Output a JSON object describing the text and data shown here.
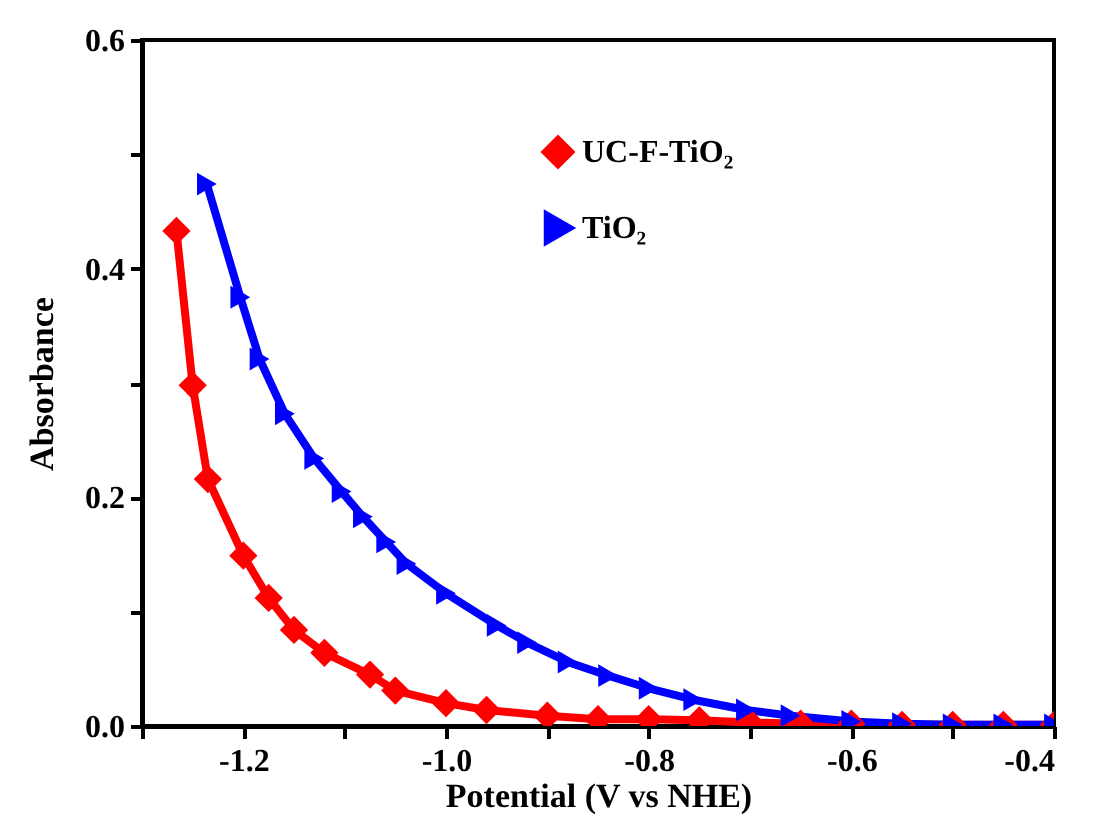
{
  "chart_data": {
    "type": "line",
    "xlabel": "Potential (V vs NHE)",
    "ylabel": "Absorbance",
    "xlim": [
      -1.3,
      -0.4
    ],
    "ylim": [
      0,
      0.6
    ],
    "xticks": [
      {
        "value": -1.3,
        "label": null
      },
      -1.2,
      {
        "value": -1.1,
        "label": null
      },
      {
        "value": -1.0,
        "label": "-1.0"
      },
      {
        "value": -0.9,
        "label": null
      },
      -0.8,
      {
        "value": -0.7,
        "label": null
      },
      -0.6,
      {
        "value": -0.5,
        "label": null
      },
      -0.4
    ],
    "yticks": [
      {
        "value": 0,
        "label": "0.0"
      },
      {
        "value": 0.1,
        "label": null
      },
      0.2,
      {
        "value": 0.3,
        "label": null
      },
      0.4,
      {
        "value": 0.5,
        "label": null
      },
      0.6
    ],
    "grid": false,
    "legend": "top right",
    "line_style": "solid",
    "series": [
      {
        "name": "UC-F-TiO₂",
        "color": "#ff0000",
        "marker": "diamond",
        "x": [
          -1.266,
          -1.25,
          -1.235,
          -1.2,
          -1.175,
          -1.15,
          -1.12,
          -1.075,
          -1.05,
          -1.0,
          -0.96,
          -0.9,
          -0.85,
          -0.8,
          -0.75,
          -0.7,
          -0.65,
          -0.6,
          -0.55,
          -0.5,
          -0.45,
          -0.4
        ],
        "values": [
          0.433,
          0.298,
          0.216,
          0.149,
          0.112,
          0.084,
          0.064,
          0.045,
          0.031,
          0.02,
          0.014,
          0.009,
          0.006,
          0.006,
          0.005,
          0.003,
          0.002,
          0.002,
          0.001,
          0.001,
          0.001,
          0.001
        ]
      },
      {
        "name": "TiO₂",
        "color": "#0000ff",
        "marker": "triangle",
        "x": [
          -1.236,
          -1.203,
          -1.184,
          -1.159,
          -1.13,
          -1.103,
          -1.082,
          -1.059,
          -1.039,
          -1.0,
          -0.95,
          -0.92,
          -0.88,
          -0.84,
          -0.8,
          -0.756,
          -0.704,
          -0.66,
          -0.6,
          -0.55,
          -0.5,
          -0.45,
          -0.4
        ],
        "values": [
          0.474,
          0.375,
          0.321,
          0.273,
          0.234,
          0.205,
          0.183,
          0.161,
          0.142,
          0.116,
          0.088,
          0.073,
          0.056,
          0.044,
          0.033,
          0.023,
          0.014,
          0.009,
          0.004,
          0.002,
          0.001,
          0.001,
          0.001
        ]
      }
    ]
  }
}
